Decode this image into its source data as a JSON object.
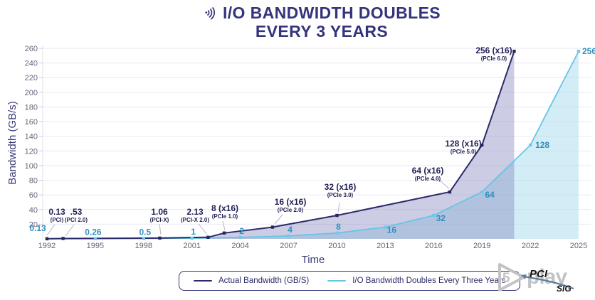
{
  "title": {
    "line1": "I/O BANDWIDTH DOUBLES",
    "line2": "EVERY 3 YEARS",
    "icon": "wifi-icon"
  },
  "colors": {
    "navy": "#34347c",
    "grid": "#e9e9f2",
    "leader": "#b6b6c8",
    "cyan_label": "#2f8fbf"
  },
  "chart_data": {
    "type": "line",
    "title": "I/O Bandwidth Doubles Every 3 Years",
    "xlabel": "Time",
    "ylabel": "Bandwidth (GB/s)",
    "xlim": [
      1992,
      2025
    ],
    "ylim": [
      0,
      260
    ],
    "x_ticks": [
      1992,
      1995,
      1998,
      2001,
      2004,
      2007,
      2010,
      2013,
      2016,
      2019,
      2022,
      2025
    ],
    "y_ticks": [
      20,
      40,
      60,
      80,
      100,
      120,
      140,
      160,
      180,
      200,
      220,
      240,
      260
    ],
    "grid": "horizontal",
    "legend_position": "bottom",
    "series": [
      {
        "name": "Actual Bandwidth (GB/S)",
        "color": "#2b2a6b",
        "marker": "#26255c",
        "fill": "rgba(121,123,184,0.38)",
        "points": [
          {
            "x": 1992,
            "y": 0.13,
            "label": "0.13",
            "sub": "(PCI)"
          },
          {
            "x": 1993,
            "y": 0.53,
            "label": ".53",
            "sub": "(PCI 2.0)"
          },
          {
            "x": 1999,
            "y": 1.06,
            "label": "1.06",
            "sub": "(PCI-X)"
          },
          {
            "x": 2002,
            "y": 2.13,
            "label": "2.13",
            "sub": "(PCI-X 2.0)"
          },
          {
            "x": 2003,
            "y": 8,
            "label": "8 (x16)",
            "sub": "(PCIe 1.0)"
          },
          {
            "x": 2006,
            "y": 16,
            "label": "16 (x16)",
            "sub": "(PCIe 2.0)"
          },
          {
            "x": 2010,
            "y": 32,
            "label": "32 (x16)",
            "sub": "(PCIe 3.0)"
          },
          {
            "x": 2017,
            "y": 64,
            "label": "64 (x16)",
            "sub": "(PCIe 4.0)"
          },
          {
            "x": 2019,
            "y": 128,
            "label": "128 (x16)",
            "sub": "(PCIe 5.0)"
          },
          {
            "x": 2021,
            "y": 256,
            "label": "256 (x16)",
            "sub": "(PCIe 6.0)"
          }
        ]
      },
      {
        "name": "I/O Bandwidth Doubles Every Three Years",
        "color": "#66c5e5",
        "marker": "#74c8e4",
        "fill": "rgba(168,219,240,0.5)",
        "points": [
          {
            "x": 1992,
            "y": 0.13,
            "label": "0.13"
          },
          {
            "x": 1995,
            "y": 0.26,
            "label": "0.26"
          },
          {
            "x": 1998,
            "y": 0.5,
            "label": "0.5"
          },
          {
            "x": 2001,
            "y": 1,
            "label": "1"
          },
          {
            "x": 2004,
            "y": 2,
            "label": "2"
          },
          {
            "x": 2007,
            "y": 4,
            "label": "4"
          },
          {
            "x": 2010,
            "y": 8,
            "label": "8"
          },
          {
            "x": 2013,
            "y": 16,
            "label": "16"
          },
          {
            "x": 2016,
            "y": 32,
            "label": "32"
          },
          {
            "x": 2019,
            "y": 64,
            "label": "64"
          },
          {
            "x": 2022,
            "y": 128,
            "label": "128"
          },
          {
            "x": 2025,
            "y": 256,
            "label": "256"
          }
        ]
      }
    ]
  },
  "legend": {
    "items": [
      {
        "label": "Actual Bandwidth (GB/S)",
        "color": "#2b2a6b"
      },
      {
        "label": "I/O Bandwidth Doubles Every Three Years",
        "color": "#66c5e5"
      }
    ]
  },
  "logo": {
    "watermark_number": "5",
    "watermark_text": "play",
    "brand_top": "PCI",
    "brand_bottom": "SIG"
  }
}
